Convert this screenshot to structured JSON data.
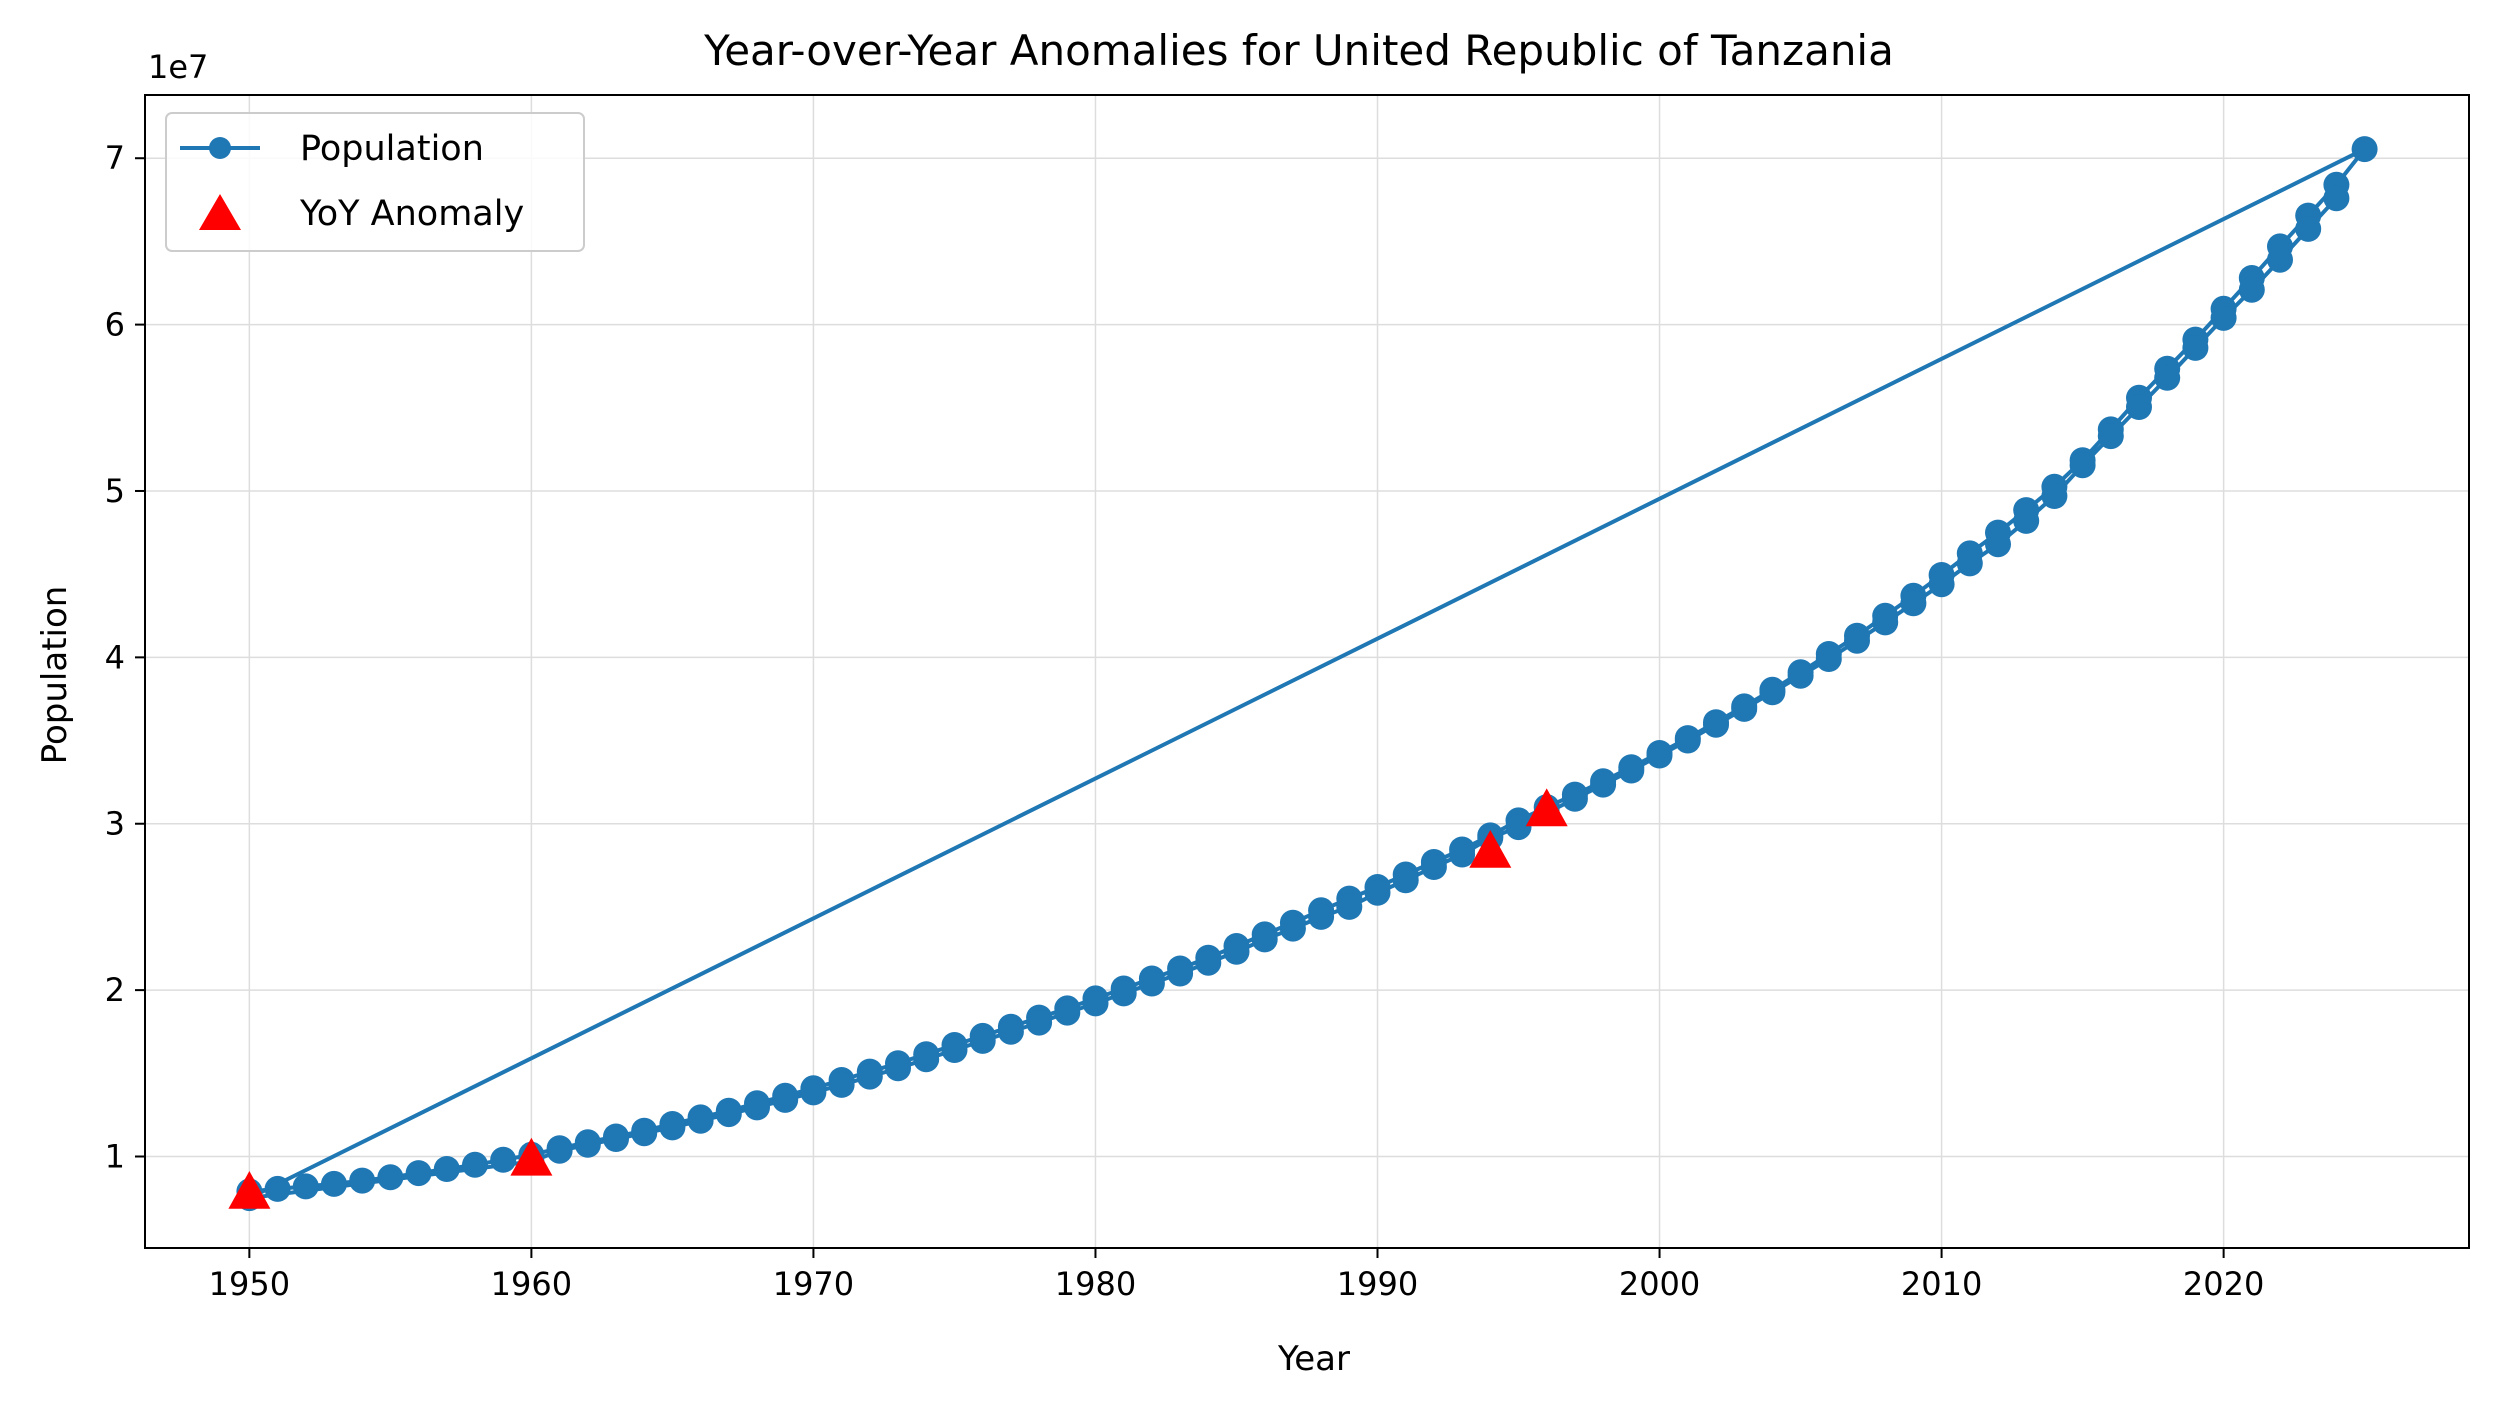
{
  "colors": {
    "series": "#1f77b4",
    "anomaly": "#ff0000",
    "grid": "#dddddd",
    "axis": "#000000"
  },
  "chart_data": {
    "type": "line",
    "title": "Year-over-Year Anomalies for United Republic of Tanzania",
    "xlabel": "Year",
    "ylabel": "Population",
    "y_offset_text": "1e7",
    "xlim": [
      1946.3,
      2028.7
    ],
    "ylim": [
      4500000,
      73800000
    ],
    "x_ticks": [
      1950,
      1960,
      1970,
      1980,
      1990,
      2000,
      2010,
      2020
    ],
    "y_ticks": [
      10000000,
      20000000,
      30000000,
      40000000,
      50000000,
      60000000,
      70000000
    ],
    "y_tick_labels": [
      "1",
      "2",
      "3",
      "4",
      "5",
      "6",
      "7"
    ],
    "grid": true,
    "legend_position": "upper-left",
    "series": [
      {
        "name": "Population",
        "marker": "circle",
        "x": [
          1950,
          1951,
          1952,
          1953,
          1954,
          1955,
          1956,
          1957,
          1958,
          1959,
          1960,
          1961,
          1962,
          1963,
          1964,
          1965,
          1966,
          1967,
          1968,
          1969,
          1970,
          1971,
          1972,
          1973,
          1974,
          1975,
          1976,
          1977,
          1978,
          1979,
          1980,
          1981,
          1982,
          1983,
          1984,
          1985,
          1986,
          1987,
          1988,
          1989,
          1990,
          1991,
          1992,
          1993,
          1994,
          1995,
          1996,
          1997,
          1998,
          1999,
          2000,
          2001,
          2002,
          2003,
          2004,
          2005,
          2006,
          2007,
          2008,
          2009,
          2010,
          2011,
          2012,
          2013,
          2014,
          2015,
          2016,
          2017,
          2018,
          2019,
          2020,
          2021,
          2022,
          2023,
          2024,
          2025,
          1950,
          1960,
          1961,
          1962,
          1963,
          1964,
          1965,
          1966,
          1967,
          1968,
          1969,
          1970,
          1971,
          1972,
          1973,
          1974,
          1975,
          1976,
          1977,
          1978,
          1979,
          1980,
          1981,
          1982,
          1983,
          1984,
          1985,
          1986,
          1987,
          1988,
          1989,
          1990,
          1991,
          1992,
          1993,
          1994,
          1995,
          1996,
          1997,
          1998,
          1999,
          2000,
          2001,
          2002,
          2003,
          2004,
          2005,
          2006,
          2007,
          2008,
          2009,
          2010,
          2011,
          2012,
          2013,
          2014,
          2015,
          2016,
          2017,
          2018,
          2019,
          2020,
          2021,
          2022,
          2023,
          2024
        ],
        "y": [
          7900000,
          8050000,
          8200000,
          8350000,
          8550000,
          8750000,
          9000000,
          9250000,
          9500000,
          9800000,
          10100000,
          10500000,
          10850000,
          11200000,
          11550000,
          11950000,
          12350000,
          12750000,
          13200000,
          13650000,
          14100000,
          14600000,
          15100000,
          15600000,
          16150000,
          16700000,
          17250000,
          17800000,
          18350000,
          18900000,
          19500000,
          20100000,
          20700000,
          21300000,
          21950000,
          22650000,
          23350000,
          24050000,
          24800000,
          25500000,
          26200000,
          26950000,
          27700000,
          28450000,
          29300000,
          30200000,
          31000000,
          31750000,
          32550000,
          33400000,
          34250000,
          35150000,
          36100000,
          37050000,
          38050000,
          39100000,
          40200000,
          41300000,
          42500000,
          43700000,
          44950000,
          46250000,
          47500000,
          48850000,
          50250000,
          51850000,
          53700000,
          55600000,
          57350000,
          59100000,
          60950000,
          62800000,
          64700000,
          66550000,
          68400000,
          70550000,
          7500000,
          9700000,
          10350000,
          10700000,
          11050000,
          11400000,
          11750000,
          12150000,
          12550000,
          12950000,
          13400000,
          13850000,
          14300000,
          14800000,
          15300000,
          15850000,
          16400000,
          16950000,
          17500000,
          18050000,
          18650000,
          19200000,
          19800000,
          20400000,
          21000000,
          21650000,
          22300000,
          23050000,
          23700000,
          24400000,
          25000000,
          25850000,
          26600000,
          27400000,
          28150000,
          29150000,
          29800000,
          30650000,
          31500000,
          32350000,
          33200000,
          34100000,
          35000000,
          35950000,
          36900000,
          37900000,
          38900000,
          39900000,
          41000000,
          42100000,
          43250000,
          44400000,
          45650000,
          46800000,
          48200000,
          49700000,
          51550000,
          53300000,
          55050000,
          56800000,
          58600000,
          60400000,
          62100000,
          63900000,
          65750000,
          67600000
        ]
      },
      {
        "name": "YoY Anomaly",
        "marker": "triangle",
        "x": [
          1950,
          1960,
          1994,
          1996
        ],
        "y": [
          7800000,
          9800000,
          28300000,
          30800000
        ]
      }
    ]
  }
}
